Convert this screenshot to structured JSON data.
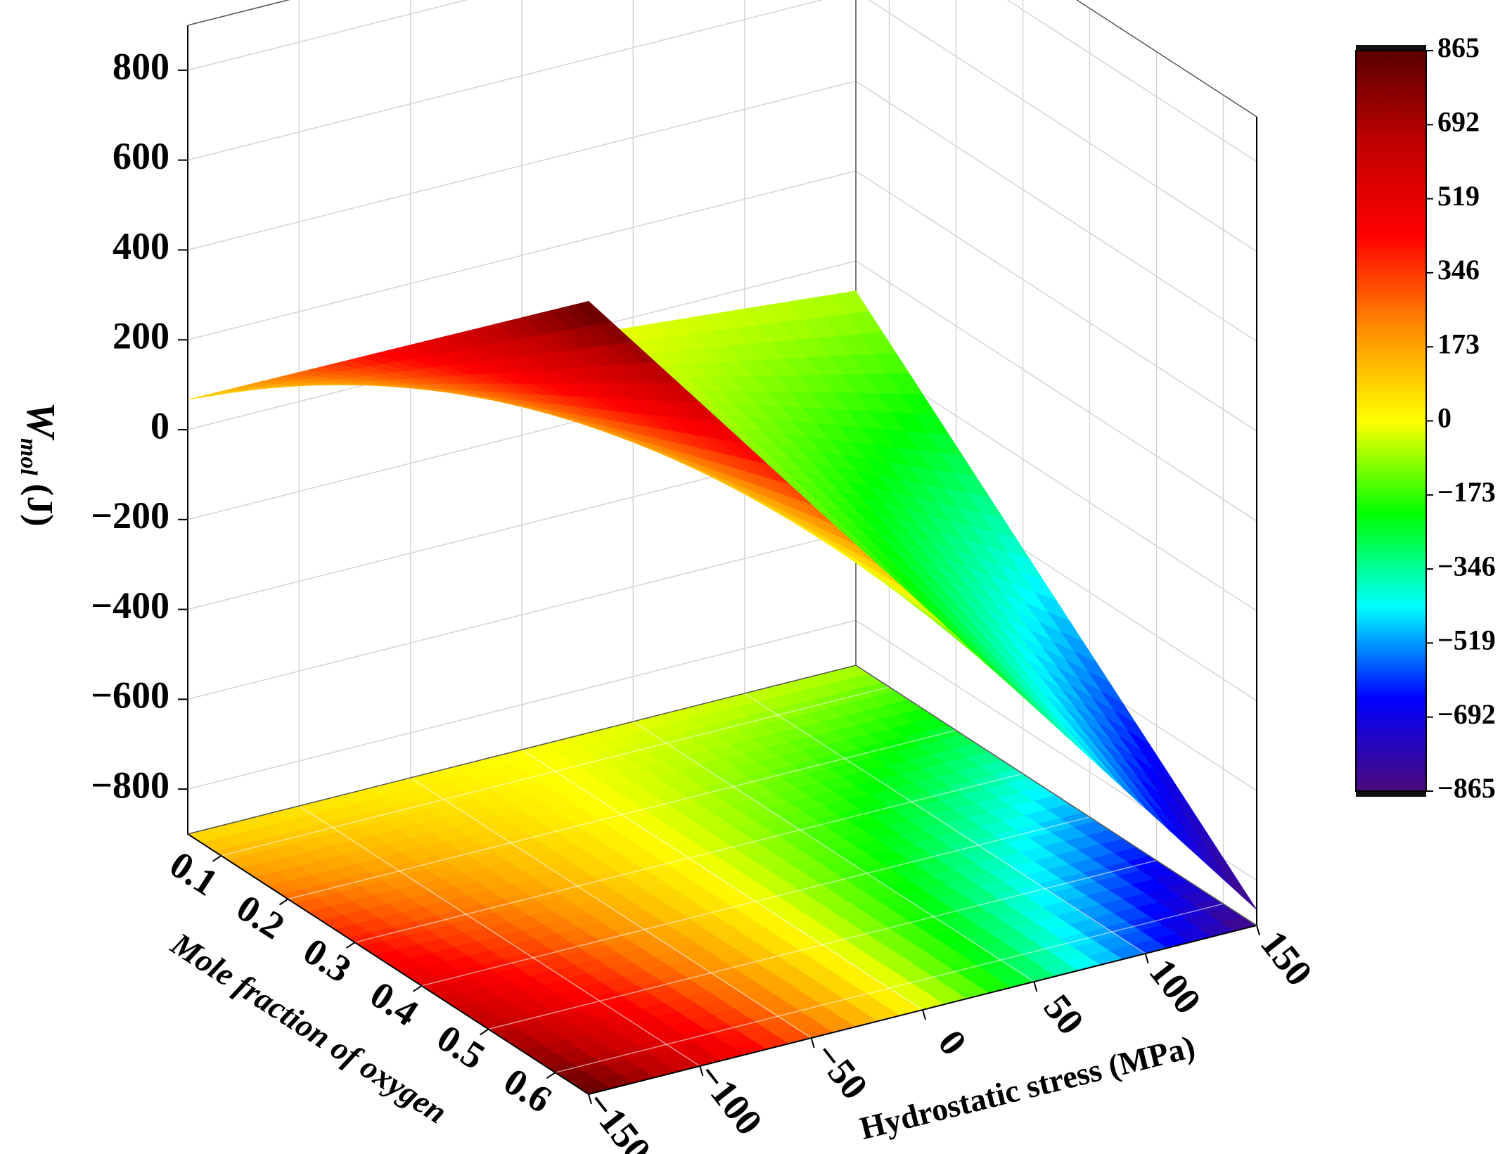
{
  "chart_data": {
    "type": "surface3d",
    "x_label": "Mole fraction of oxygen",
    "y_label": "Hydrostatic stress (MPa)",
    "z_label": "W",
    "z_label_sub": "mol",
    "z_label_unit": "(J)",
    "x": [
      0.05,
      0.15,
      0.25,
      0.35,
      0.45,
      0.55,
      0.65
    ],
    "y": [
      -150,
      -100,
      -50,
      0,
      50,
      100,
      150
    ],
    "z": [
      [
        67,
        44,
        22,
        0,
        -22,
        -44,
        -67
      ],
      [
        200,
        133,
        67,
        0,
        -67,
        -133,
        -200
      ],
      [
        333,
        222,
        111,
        0,
        -111,
        -222,
        -333
      ],
      [
        466,
        311,
        155,
        0,
        -155,
        -311,
        -466
      ],
      [
        599,
        399,
        200,
        0,
        -200,
        -399,
        -599
      ],
      [
        732,
        488,
        244,
        0,
        -244,
        -488,
        -732
      ],
      [
        865,
        577,
        288,
        0,
        -288,
        -577,
        -865
      ]
    ],
    "xlim": [
      0.05,
      0.65
    ],
    "ylim": [
      -150,
      150
    ],
    "zlim": [
      -900,
      900
    ],
    "xticks": [
      0.1,
      0.2,
      0.3,
      0.4,
      0.5,
      0.6
    ],
    "yticks": [
      {
        "value": -150,
        "label": "−150"
      },
      {
        "value": -100,
        "label": "−100"
      },
      {
        "value": -50,
        "label": "−50"
      },
      0,
      50,
      100,
      150
    ],
    "zticks": [
      {
        "value": -800,
        "label": "−800"
      },
      {
        "value": -600,
        "label": "−600"
      },
      {
        "value": -400,
        "label": "−400"
      },
      {
        "value": -200,
        "label": "−200"
      },
      0,
      200,
      400,
      600,
      800
    ],
    "grid": true,
    "floor_projection": true,
    "colorbar": {
      "clim": [
        -865,
        865
      ],
      "colormap": [
        "#4b0a7a",
        "#0000ff",
        "#00ffff",
        "#00ff00",
        "#ffff00",
        "#ff8c00",
        "#ff0000",
        "#c00000",
        "#5a0000"
      ],
      "ticks": [
        {
          "value": -865,
          "label": "−865"
        },
        {
          "value": -692,
          "label": "−692"
        },
        {
          "value": -519,
          "label": "−519"
        },
        {
          "value": -346,
          "label": "−346"
        },
        {
          "value": -173,
          "label": "−173"
        },
        0,
        173,
        346,
        519,
        692,
        865
      ]
    }
  }
}
